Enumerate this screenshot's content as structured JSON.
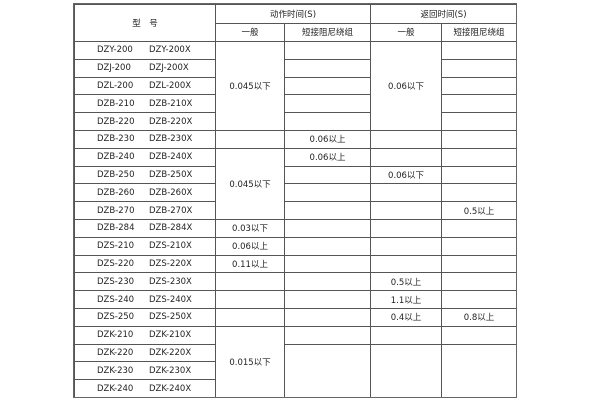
{
  "header": {
    "model": "型　号",
    "action_time": "动作时间(S)",
    "return_time": "返回时间(S)",
    "general": "一般",
    "short_damping": "短接阻尼绕组"
  },
  "models": [
    [
      "DZY-200",
      "DZY-200X"
    ],
    [
      "DZJ-200",
      "DZJ-200X"
    ],
    [
      "DZL-200",
      "DZL-200X"
    ],
    [
      "DZB-210",
      "DZB-210X"
    ],
    [
      "DZB-220",
      "DZB-220X"
    ],
    [
      "DZB-230",
      "DZB-230X"
    ],
    [
      "DZB-240",
      "DZB-240X"
    ],
    [
      "DZB-250",
      "DZB-250X"
    ],
    [
      "DZB-260",
      "DZB-260X"
    ],
    [
      "DZB-270",
      "DZB-270X"
    ],
    [
      "DZB-284",
      "DZB-284X"
    ],
    [
      "DZS-210",
      "DZS-210X"
    ],
    [
      "DZS-220",
      "DZS-220X"
    ],
    [
      "DZS-230",
      "DZS-230X"
    ],
    [
      "DZS-240",
      "DZS-240X"
    ],
    [
      "DZS-250",
      "DZS-250X"
    ],
    [
      "DZK-210",
      "DZK-210X"
    ],
    [
      "DZK-220",
      "DZK-220X"
    ],
    [
      "DZK-230",
      "DZK-230X"
    ],
    [
      "DZK-240",
      "DZK-240X"
    ]
  ],
  "values": {
    "act_g_1_5": "0.045以下",
    "ret_g_1_5": "0.06以下",
    "act_s_230": "0.06以上",
    "act_g_240_270": "0.045以下",
    "act_s_240": "0.06以上",
    "ret_g_250": "0.06以下",
    "ret_s_270": "0.5以上",
    "act_g_284": "0.03以下",
    "act_g_s210": "0.06以上",
    "act_g_s220": "0.11以上",
    "ret_g_s230": "0.5以上",
    "ret_g_s240": "1.1以上",
    "ret_g_s250": "0.4以上",
    "ret_s_s250": "0.8以上",
    "act_g_dzk": "0.015以下"
  }
}
